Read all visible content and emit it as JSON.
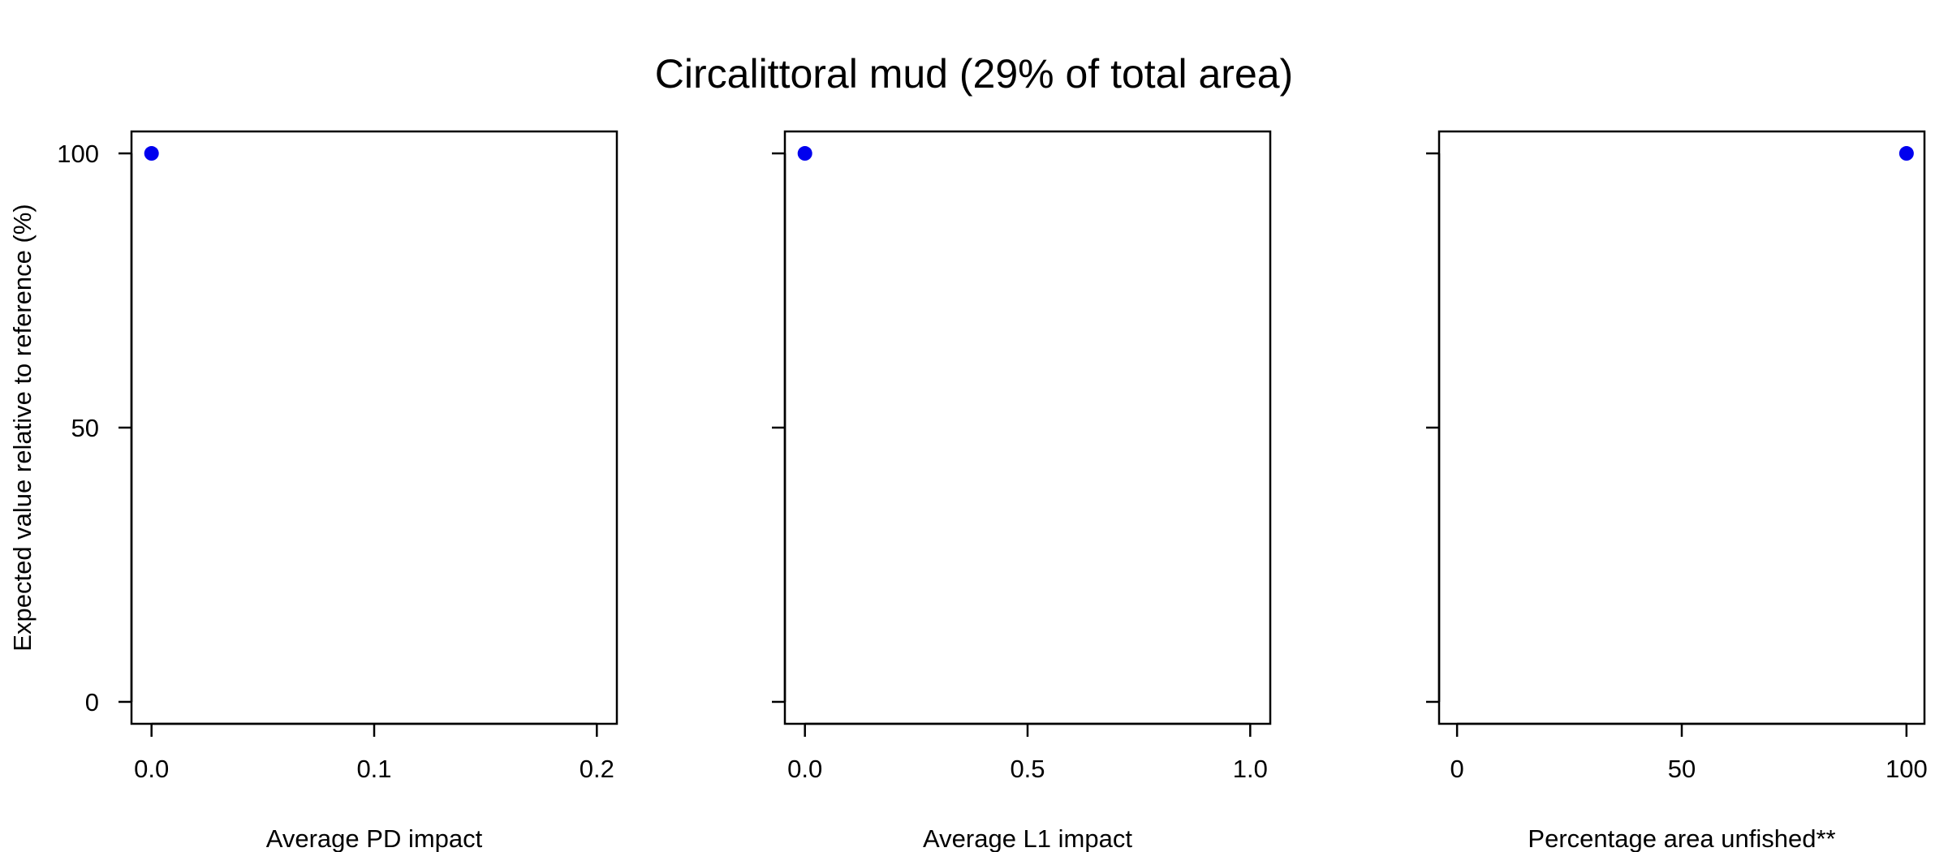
{
  "chart_data": {
    "title": "Circalittoral mud (29% of total area)",
    "colors": {
      "points": "#0000ee",
      "axes": "#000000",
      "background": "#ffffff"
    },
    "panels": [
      {
        "type": "scatter",
        "xlabel": "Average PD impact",
        "ylabel": "Expected value relative to reference (%)",
        "xlim": [
          -0.009,
          0.209
        ],
        "ylim": [
          -4,
          104
        ],
        "xticks": [
          0,
          0.1,
          0.2
        ],
        "xtick_labels": [
          "0.0",
          "0.1",
          "0.2"
        ],
        "yticks": [
          0,
          50,
          100
        ],
        "ytick_labels": [
          "0",
          "50",
          "100"
        ],
        "show_ytick_labels": true,
        "grid": false,
        "points": [
          {
            "x": 0,
            "y": 100
          }
        ]
      },
      {
        "type": "scatter",
        "xlabel": "Average L1 impact",
        "ylabel": "",
        "xlim": [
          -0.045,
          1.045
        ],
        "ylim": [
          -4,
          104
        ],
        "xticks": [
          0,
          0.5,
          1
        ],
        "xtick_labels": [
          "0.0",
          "0.5",
          "1.0"
        ],
        "yticks": [
          0,
          50,
          100
        ],
        "ytick_labels": [
          "0",
          "50",
          "100"
        ],
        "show_ytick_labels": false,
        "grid": false,
        "points": [
          {
            "x": 0,
            "y": 100
          }
        ]
      },
      {
        "type": "scatter",
        "xlabel": "Percentage area unfished**",
        "ylabel": "",
        "xlim": [
          -4,
          104
        ],
        "ylim": [
          -4,
          104
        ],
        "xticks": [
          0,
          50,
          100
        ],
        "xtick_labels": [
          "0",
          "50",
          "100"
        ],
        "yticks": [
          0,
          50,
          100
        ],
        "ytick_labels": [
          "0",
          "50",
          "100"
        ],
        "show_ytick_labels": false,
        "grid": false,
        "points": [
          {
            "x": 100,
            "y": 100
          }
        ]
      }
    ]
  }
}
